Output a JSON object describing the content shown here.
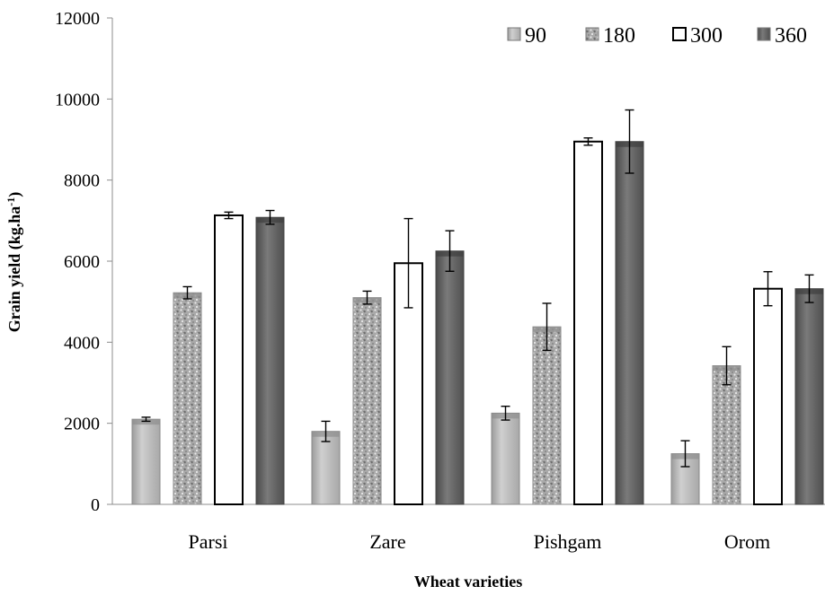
{
  "chart_data": {
    "type": "bar",
    "title": "",
    "xlabel": "Wheat varieties",
    "ylabel": "Grain yield  (kg.ha",
    "ylabel_sup": "-1",
    "ylabel_end": ")",
    "categories": [
      "Parsi",
      "Zare",
      "Pishgam",
      "Orom"
    ],
    "ylim": [
      0,
      12000
    ],
    "yticks": [
      0,
      2000,
      4000,
      6000,
      8000,
      10000,
      12000
    ],
    "grid": false,
    "legend_position": "top-right",
    "series": [
      {
        "name": "90",
        "values": [
          2100,
          1800,
          2250,
          1250
        ],
        "errors": [
          50,
          250,
          170,
          320
        ],
        "color": "#aeaeae",
        "pattern": "solid-light"
      },
      {
        "name": "180",
        "values": [
          5220,
          5100,
          4380,
          3420
        ],
        "errors": [
          150,
          160,
          580,
          470
        ],
        "color": "#9a9a9a",
        "pattern": "speckled"
      },
      {
        "name": "300",
        "values": [
          7130,
          5950,
          8950,
          5320
        ],
        "errors": [
          80,
          1100,
          90,
          420
        ],
        "color": "#ffffff",
        "pattern": "outline"
      },
      {
        "name": "360",
        "values": [
          7080,
          6250,
          8950,
          5320
        ],
        "errors": [
          170,
          500,
          780,
          340
        ],
        "color": "#5a5a5a",
        "pattern": "solid-dark"
      }
    ]
  }
}
